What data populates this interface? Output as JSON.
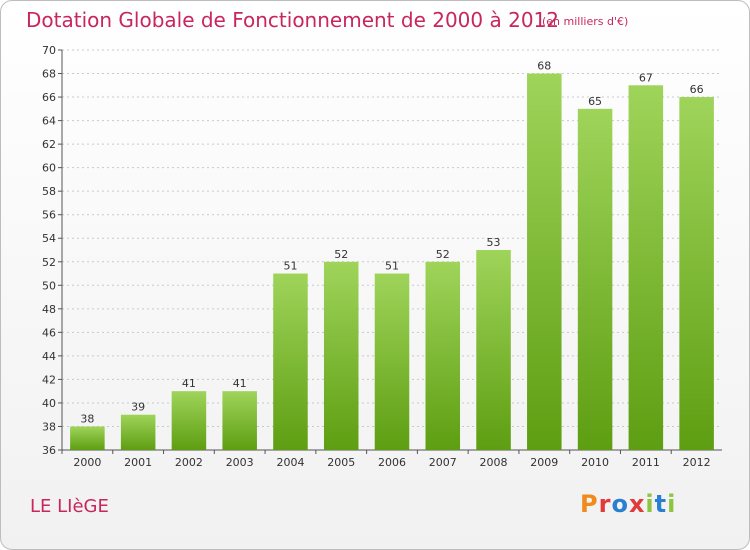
{
  "header": {
    "title": "Dotation Globale de Fonctionnement de 2000 à 2012",
    "subtitle": "(en milliers d'€)"
  },
  "footer": {
    "commune": "LE LIèGE",
    "logo_text": "Proxiti",
    "logo_colors": [
      "#f08a1c",
      "#e23a3a",
      "#2a7fd1",
      "#e23a3a",
      "#8cc63f",
      "#2a7fd1",
      "#8cc63f"
    ]
  },
  "colors": {
    "title": "#c8265f",
    "bar_top": "#9fd45a",
    "bar_bottom": "#5e9e12",
    "grid": "#c9c9c9"
  },
  "chart_data": {
    "type": "bar",
    "categories": [
      "2000",
      "2001",
      "2002",
      "2003",
      "2004",
      "2005",
      "2006",
      "2007",
      "2008",
      "2009",
      "2010",
      "2011",
      "2012"
    ],
    "values": [
      38,
      39,
      41,
      41,
      51,
      52,
      51,
      52,
      53,
      68,
      65,
      67,
      66
    ],
    "ylim": [
      36,
      70
    ],
    "yticks": [
      36,
      38,
      40,
      42,
      44,
      46,
      48,
      50,
      52,
      54,
      56,
      58,
      60,
      62,
      64,
      66,
      68,
      70
    ],
    "grid": true,
    "data_labels": true
  }
}
